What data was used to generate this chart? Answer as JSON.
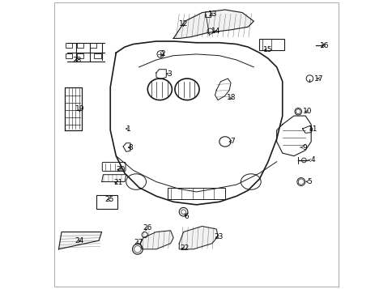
{
  "bg_color": "#ffffff",
  "line_color": "#1a1a1a",
  "label_color": "#000000",
  "title": "",
  "figsize": [
    4.85,
    3.57
  ],
  "dpi": 100
}
